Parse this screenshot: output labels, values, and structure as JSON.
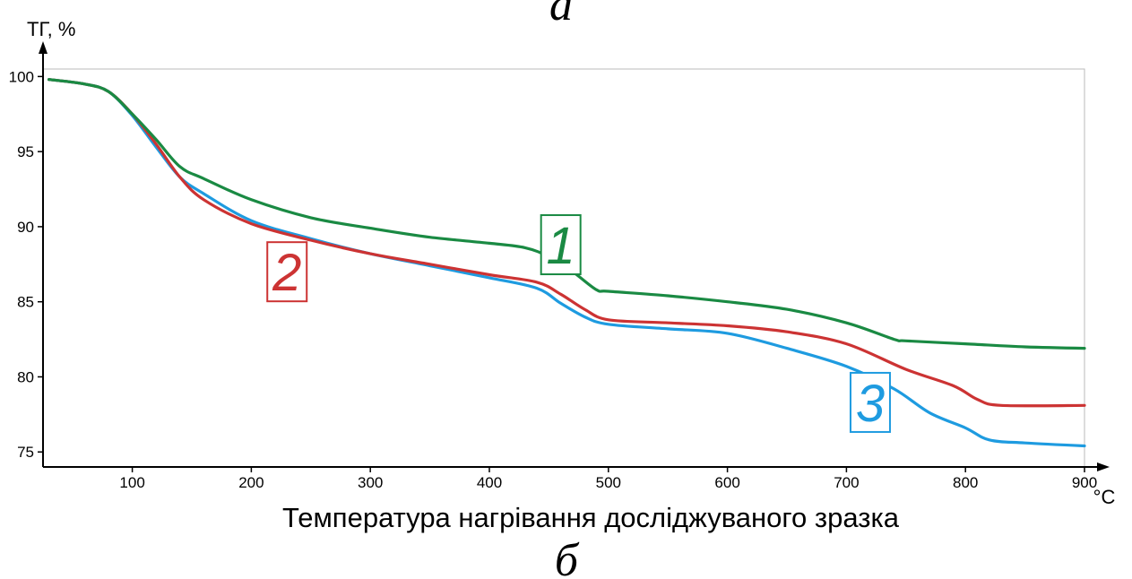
{
  "top_caption": "а",
  "bottom_caption": "б",
  "chart_data": {
    "type": "line",
    "ylabel": "ТГ, %",
    "xunit": "°C",
    "xlabel": "Температура нагрівання досліджуваного зразка",
    "xlim": [
      25,
      900
    ],
    "ylim": [
      74,
      100.5
    ],
    "xticks": [
      100,
      200,
      300,
      400,
      500,
      600,
      700,
      800,
      900
    ],
    "yticks": [
      75,
      80,
      85,
      90,
      95,
      100
    ],
    "grid": false,
    "series": [
      {
        "name": "1",
        "color": "#1a8a43",
        "x": [
          30,
          60,
          80,
          100,
          120,
          140,
          160,
          200,
          250,
          300,
          350,
          400,
          430,
          450,
          470,
          490,
          500,
          550,
          600,
          650,
          700,
          740,
          750,
          800,
          850,
          900
        ],
        "y": [
          99.8,
          99.5,
          99.0,
          97.5,
          95.8,
          94.0,
          93.2,
          91.8,
          90.6,
          89.9,
          89.3,
          88.9,
          88.6,
          88.0,
          87.0,
          85.8,
          85.7,
          85.4,
          85.0,
          84.5,
          83.6,
          82.5,
          82.4,
          82.2,
          82.0,
          81.9
        ]
      },
      {
        "name": "2",
        "color": "#cc3333",
        "x": [
          30,
          60,
          80,
          100,
          120,
          140,
          160,
          200,
          250,
          300,
          350,
          400,
          440,
          460,
          480,
          500,
          550,
          600,
          650,
          700,
          750,
          790,
          810,
          830,
          900
        ],
        "y": [
          99.8,
          99.5,
          99.0,
          97.5,
          95.5,
          93.3,
          91.8,
          90.2,
          89.1,
          88.2,
          87.5,
          86.8,
          86.3,
          85.5,
          84.5,
          83.8,
          83.6,
          83.4,
          83.0,
          82.2,
          80.5,
          79.4,
          78.5,
          78.1,
          78.1
        ]
      },
      {
        "name": "3",
        "color": "#1e9be0",
        "x": [
          30,
          60,
          80,
          100,
          120,
          140,
          160,
          200,
          250,
          300,
          350,
          400,
          440,
          460,
          480,
          500,
          550,
          600,
          650,
          700,
          740,
          770,
          800,
          820,
          850,
          900
        ],
        "y": [
          99.8,
          99.5,
          99.0,
          97.4,
          95.3,
          93.3,
          92.2,
          90.4,
          89.2,
          88.2,
          87.4,
          86.6,
          85.9,
          84.9,
          84.0,
          83.5,
          83.2,
          82.9,
          81.9,
          80.7,
          79.2,
          77.6,
          76.6,
          75.8,
          75.6,
          75.4
        ]
      }
    ],
    "labels": [
      {
        "text": "1",
        "color": "#1a8a43",
        "x": 460,
        "y": 88.8
      },
      {
        "text": "2",
        "color": "#cc3333",
        "x": 230,
        "y": 87.0
      },
      {
        "text": "3",
        "color": "#1e9be0",
        "x": 720,
        "y": 78.3
      }
    ]
  }
}
